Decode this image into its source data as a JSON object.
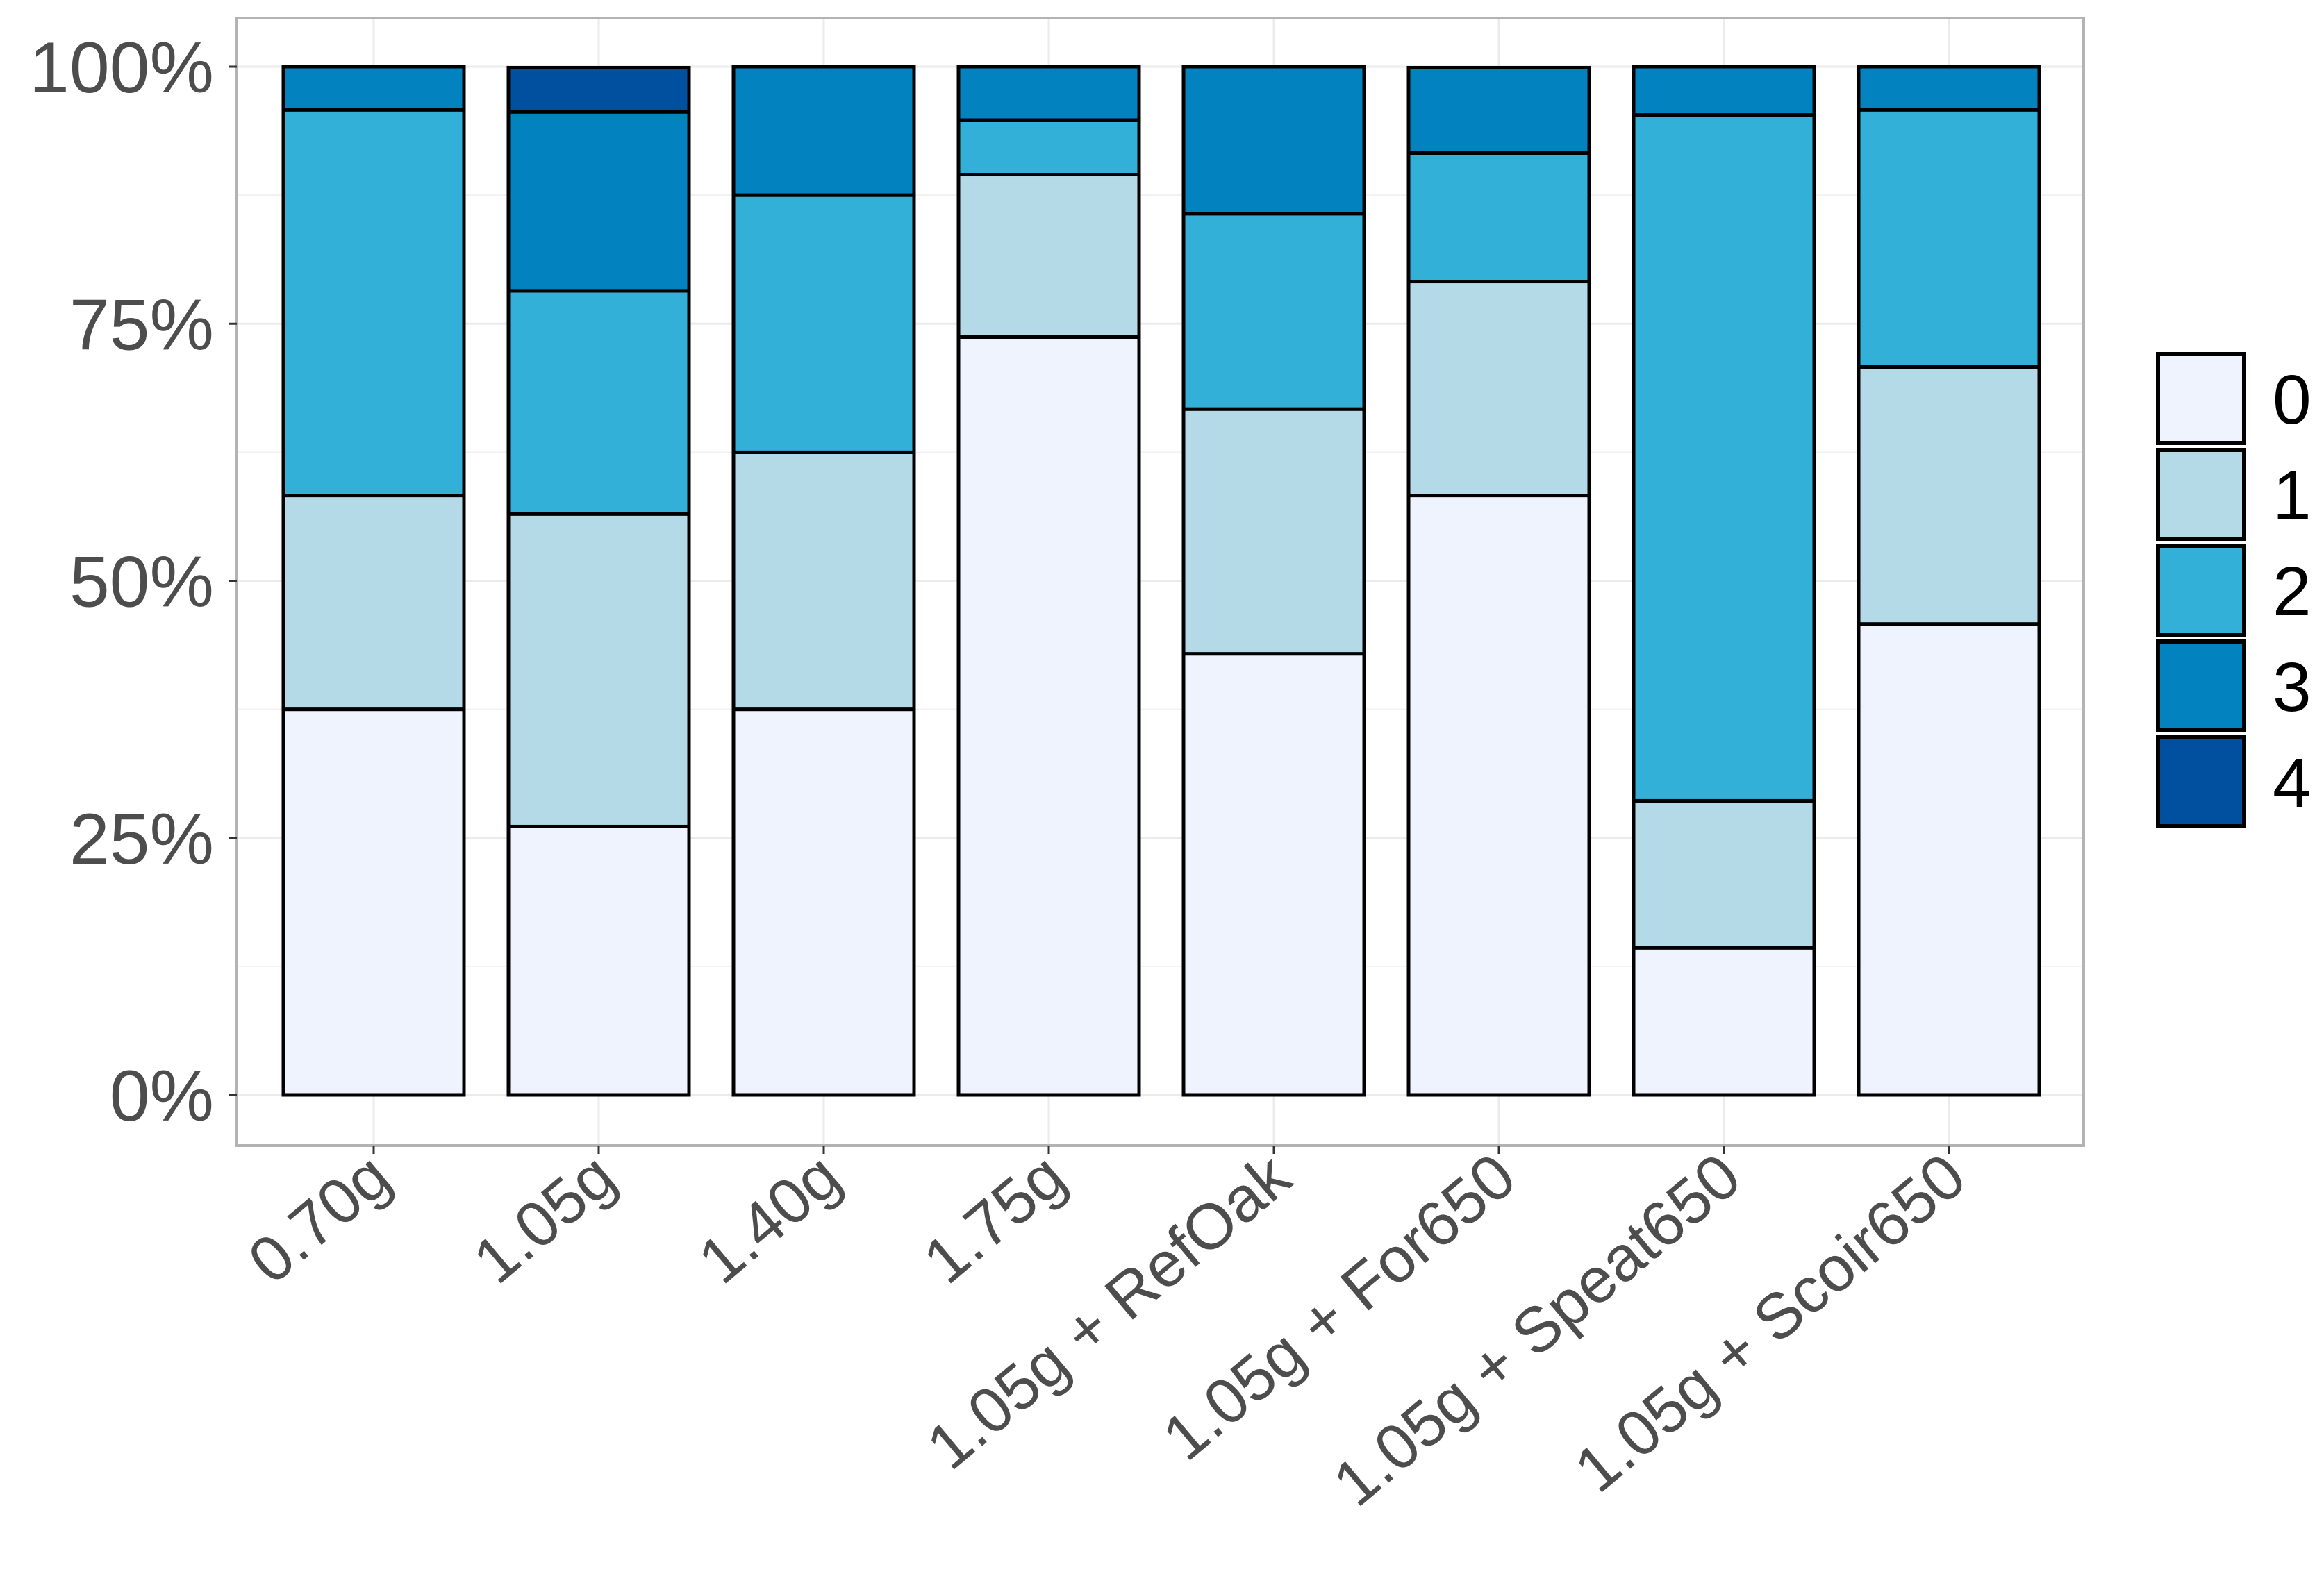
{
  "chart_data": {
    "type": "bar",
    "stacked": true,
    "normalized": true,
    "title": "",
    "xlabel": "",
    "ylabel": "",
    "ylim": [
      0,
      100
    ],
    "y_ticks": [
      "0%",
      "25%",
      "50%",
      "75%",
      "100%"
    ],
    "y_tick_values": [
      0,
      25,
      50,
      75,
      100
    ],
    "grid": true,
    "legend_position": "right",
    "categories": [
      "0.70g",
      "1.05g",
      "1.40g",
      "1.75g",
      "1.05g + RefOak",
      "1.05g + For650",
      "1.05g + Speat650",
      "1.05g + Scoir650"
    ],
    "series": [
      {
        "name": "0",
        "color": "#EEF3FE",
        "values": [
          37.5,
          26.1,
          37.5,
          73.7,
          42.9,
          58.3,
          14.3,
          45.8
        ]
      },
      {
        "name": "1",
        "color": "#B4D9E7",
        "values": [
          20.8,
          30.4,
          25.0,
          15.8,
          23.8,
          20.8,
          14.3,
          25.0
        ]
      },
      {
        "name": "2",
        "color": "#33B0D7",
        "values": [
          37.5,
          21.7,
          25.0,
          5.3,
          19.0,
          12.5,
          66.7,
          25.0
        ]
      },
      {
        "name": "3",
        "color": "#0283C0",
        "values": [
          4.2,
          17.4,
          12.5,
          5.3,
          14.3,
          8.3,
          4.8,
          4.2
        ]
      },
      {
        "name": "4",
        "color": "#0050A0",
        "values": [
          0,
          4.3,
          0,
          0,
          0,
          0,
          0,
          0
        ]
      }
    ]
  }
}
